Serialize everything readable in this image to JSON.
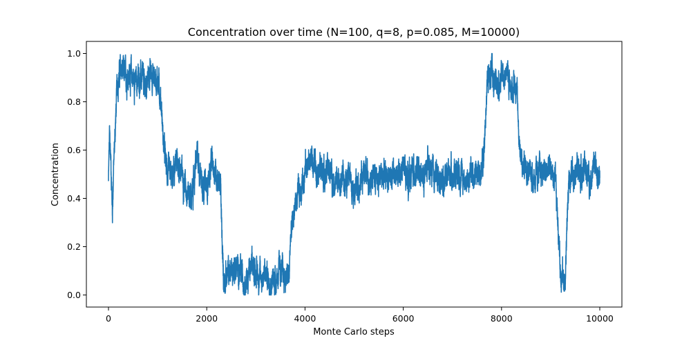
{
  "chart_data": {
    "type": "line",
    "title": "Concentration over time (N=100, q=8, p=0.085, M=10000)",
    "xlabel": "Monte Carlo steps",
    "ylabel": "Concentration",
    "xlim": [
      -450,
      10450
    ],
    "ylim": [
      -0.05,
      1.05
    ],
    "xticks": [
      0,
      2000,
      4000,
      6000,
      8000,
      10000
    ],
    "xtick_labels": [
      "0",
      "2000",
      "4000",
      "6000",
      "8000",
      "10000"
    ],
    "yticks": [
      0.0,
      0.2,
      0.4,
      0.6,
      0.8,
      1.0
    ],
    "ytick_labels": [
      "0.0",
      "0.2",
      "0.4",
      "0.6",
      "0.8",
      "1.0"
    ],
    "grid": false,
    "line_color": "#1f77b4",
    "series": [
      {
        "anchor_points": [
          [
            0,
            0.47
          ],
          [
            20,
            0.66
          ],
          [
            50,
            0.55
          ],
          [
            80,
            0.35
          ],
          [
            100,
            0.5
          ],
          [
            140,
            0.7
          ],
          [
            180,
            0.88
          ],
          [
            250,
            0.93
          ],
          [
            350,
            0.9
          ],
          [
            450,
            0.92
          ],
          [
            550,
            0.88
          ],
          [
            650,
            0.9
          ],
          [
            750,
            0.86
          ],
          [
            850,
            0.92
          ],
          [
            950,
            0.9
          ],
          [
            1020,
            0.88
          ],
          [
            1080,
            0.78
          ],
          [
            1110,
            0.65
          ],
          [
            1150,
            0.57
          ],
          [
            1200,
            0.5
          ],
          [
            1300,
            0.48
          ],
          [
            1400,
            0.55
          ],
          [
            1500,
            0.5
          ],
          [
            1600,
            0.44
          ],
          [
            1700,
            0.4
          ],
          [
            1800,
            0.58
          ],
          [
            1900,
            0.48
          ],
          [
            2000,
            0.44
          ],
          [
            2100,
            0.54
          ],
          [
            2200,
            0.5
          ],
          [
            2280,
            0.46
          ],
          [
            2310,
            0.22
          ],
          [
            2340,
            0.07
          ],
          [
            2400,
            0.08
          ],
          [
            2500,
            0.1
          ],
          [
            2600,
            0.12
          ],
          [
            2700,
            0.08
          ],
          [
            2800,
            0.06
          ],
          [
            2900,
            0.11
          ],
          [
            3000,
            0.1
          ],
          [
            3100,
            0.07
          ],
          [
            3200,
            0.09
          ],
          [
            3300,
            0.05
          ],
          [
            3400,
            0.07
          ],
          [
            3500,
            0.1
          ],
          [
            3600,
            0.07
          ],
          [
            3680,
            0.08
          ],
          [
            3700,
            0.22
          ],
          [
            3750,
            0.3
          ],
          [
            3800,
            0.38
          ],
          [
            3900,
            0.42
          ],
          [
            4000,
            0.52
          ],
          [
            4100,
            0.56
          ],
          [
            4200,
            0.55
          ],
          [
            4300,
            0.52
          ],
          [
            4400,
            0.5
          ],
          [
            4500,
            0.52
          ],
          [
            4600,
            0.47
          ],
          [
            4700,
            0.46
          ],
          [
            4800,
            0.48
          ],
          [
            4900,
            0.5
          ],
          [
            5000,
            0.44
          ],
          [
            5100,
            0.46
          ],
          [
            5200,
            0.5
          ],
          [
            5300,
            0.48
          ],
          [
            5400,
            0.5
          ],
          [
            5500,
            0.47
          ],
          [
            5600,
            0.52
          ],
          [
            5700,
            0.5
          ],
          [
            5800,
            0.5
          ],
          [
            5900,
            0.49
          ],
          [
            6000,
            0.53
          ],
          [
            6100,
            0.48
          ],
          [
            6200,
            0.52
          ],
          [
            6300,
            0.5
          ],
          [
            6400,
            0.48
          ],
          [
            6500,
            0.53
          ],
          [
            6600,
            0.5
          ],
          [
            6700,
            0.49
          ],
          [
            6800,
            0.47
          ],
          [
            6900,
            0.52
          ],
          [
            7000,
            0.48
          ],
          [
            7100,
            0.53
          ],
          [
            7200,
            0.49
          ],
          [
            7300,
            0.47
          ],
          [
            7400,
            0.51
          ],
          [
            7500,
            0.5
          ],
          [
            7600,
            0.52
          ],
          [
            7650,
            0.6
          ],
          [
            7700,
            0.88
          ],
          [
            7800,
            0.92
          ],
          [
            7900,
            0.86
          ],
          [
            8000,
            0.9
          ],
          [
            8100,
            0.93
          ],
          [
            8200,
            0.85
          ],
          [
            8300,
            0.88
          ],
          [
            8360,
            0.65
          ],
          [
            8420,
            0.52
          ],
          [
            8500,
            0.55
          ],
          [
            8600,
            0.5
          ],
          [
            8700,
            0.48
          ],
          [
            8800,
            0.52
          ],
          [
            8900,
            0.5
          ],
          [
            9000,
            0.53
          ],
          [
            9100,
            0.45
          ],
          [
            9150,
            0.3
          ],
          [
            9200,
            0.1
          ],
          [
            9300,
            0.05
          ],
          [
            9330,
            0.3
          ],
          [
            9380,
            0.48
          ],
          [
            9450,
            0.52
          ],
          [
            9500,
            0.53
          ],
          [
            9600,
            0.5
          ],
          [
            9700,
            0.52
          ],
          [
            9800,
            0.48
          ],
          [
            9900,
            0.54
          ],
          [
            10000,
            0.46
          ]
        ],
        "noise": {
          "amplitude": 0.06,
          "samples": 10000,
          "clip": [
            0.0,
            1.0
          ]
        }
      }
    ]
  }
}
